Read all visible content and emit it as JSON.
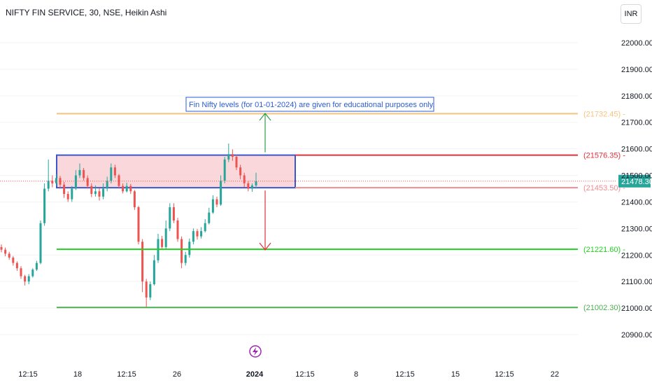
{
  "header": {
    "symbol_title": "NIFTY FIN SERVICE, 30, NSE, Heikin Ashi",
    "currency_label": "INR"
  },
  "chart_data": {
    "type": "candlestick",
    "yaxis": {
      "ticks": [
        22000,
        21900,
        21800,
        21700,
        21600,
        21500,
        21400,
        21300,
        21200,
        21100,
        21000,
        20900
      ],
      "tick_labels": [
        "22000.00",
        "21900.00",
        "21800.00",
        "21700.00",
        "21600.00",
        "21500.00",
        "21400.00",
        "21300.00",
        "21200.00",
        "21100.00",
        "21000.00",
        "20900.00"
      ],
      "range": [
        20860,
        22060
      ]
    },
    "xaxis": {
      "tick_labels": [
        "12:15",
        "18",
        "12:15",
        "26",
        "2024",
        "12:15",
        "8",
        "12:15",
        "15",
        "12:15",
        "22"
      ]
    },
    "last_price": {
      "value": 21478.3,
      "label": "21478.30",
      "color": "#26a69a"
    },
    "levels": [
      {
        "value": 21732.45,
        "label": "(21732.45)",
        "color": "#f7c27e"
      },
      {
        "value": 21576.35,
        "label": "(21576.35)",
        "color": "#e0303c"
      },
      {
        "value": 21453.5,
        "label": "(21453.50)",
        "color": "#f08c92"
      },
      {
        "value": 21221.6,
        "label": "(21221.60)",
        "color": "#22d022"
      },
      {
        "value": 21002.3,
        "label": "(21002.30)",
        "color": "#4caf50"
      }
    ],
    "zone": {
      "from": 21453.5,
      "to": 21576.35,
      "fill": "#f8d0d5",
      "border": "#3a56c8"
    },
    "annotation": {
      "text": "Fin Nifty levels (for 01-01-2024) are given for educational purposes only.",
      "color": "#2a5bd7"
    },
    "arrows": {
      "up_color": "#2e9e48",
      "down_color": "#e0303c"
    },
    "candle_colors": {
      "up": "#26a69a",
      "down": "#ef5350"
    },
    "candles": [
      {
        "o": 21230,
        "c": 21220,
        "h": 21240,
        "l": 21210
      },
      {
        "o": 21220,
        "c": 21205,
        "h": 21228,
        "l": 21195
      },
      {
        "o": 21205,
        "c": 21190,
        "h": 21212,
        "l": 21182
      },
      {
        "o": 21190,
        "c": 21170,
        "h": 21196,
        "l": 21160
      },
      {
        "o": 21170,
        "c": 21150,
        "h": 21176,
        "l": 21140
      },
      {
        "o": 21150,
        "c": 21120,
        "h": 21158,
        "l": 21110
      },
      {
        "o": 21120,
        "c": 21100,
        "h": 21125,
        "l": 21085
      },
      {
        "o": 21100,
        "c": 21120,
        "h": 21128,
        "l": 21090
      },
      {
        "o": 21120,
        "c": 21145,
        "h": 21150,
        "l": 21115
      },
      {
        "o": 21145,
        "c": 21170,
        "h": 21178,
        "l": 21140
      },
      {
        "o": 21170,
        "c": 21320,
        "h": 21330,
        "l": 21165
      },
      {
        "o": 21320,
        "c": 21450,
        "h": 21470,
        "l": 21310
      },
      {
        "o": 21450,
        "c": 21480,
        "h": 21560,
        "l": 21440
      },
      {
        "o": 21480,
        "c": 21470,
        "h": 21500,
        "l": 21455
      },
      {
        "o": 21470,
        "c": 21490,
        "h": 21505,
        "l": 21460
      },
      {
        "o": 21490,
        "c": 21465,
        "h": 21498,
        "l": 21450
      },
      {
        "o": 21465,
        "c": 21430,
        "h": 21475,
        "l": 21415
      },
      {
        "o": 21430,
        "c": 21410,
        "h": 21440,
        "l": 21400
      },
      {
        "o": 21410,
        "c": 21450,
        "h": 21460,
        "l": 21400
      },
      {
        "o": 21450,
        "c": 21500,
        "h": 21520,
        "l": 21445
      },
      {
        "o": 21500,
        "c": 21520,
        "h": 21545,
        "l": 21490
      },
      {
        "o": 21520,
        "c": 21490,
        "h": 21528,
        "l": 21480
      },
      {
        "o": 21490,
        "c": 21460,
        "h": 21500,
        "l": 21450
      },
      {
        "o": 21460,
        "c": 21430,
        "h": 21470,
        "l": 21418
      },
      {
        "o": 21430,
        "c": 21440,
        "h": 21462,
        "l": 21420
      },
      {
        "o": 21440,
        "c": 21420,
        "h": 21452,
        "l": 21405
      },
      {
        "o": 21420,
        "c": 21450,
        "h": 21470,
        "l": 21410
      },
      {
        "o": 21450,
        "c": 21480,
        "h": 21495,
        "l": 21440
      },
      {
        "o": 21480,
        "c": 21530,
        "h": 21545,
        "l": 21470
      },
      {
        "o": 21530,
        "c": 21500,
        "h": 21540,
        "l": 21490
      },
      {
        "o": 21500,
        "c": 21460,
        "h": 21505,
        "l": 21450
      },
      {
        "o": 21460,
        "c": 21440,
        "h": 21470,
        "l": 21432
      },
      {
        "o": 21440,
        "c": 21460,
        "h": 21472,
        "l": 21436
      },
      {
        "o": 21460,
        "c": 21440,
        "h": 21468,
        "l": 21430
      },
      {
        "o": 21440,
        "c": 21380,
        "h": 21445,
        "l": 21370
      },
      {
        "o": 21380,
        "c": 21250,
        "h": 21385,
        "l": 21240
      },
      {
        "o": 21250,
        "c": 21100,
        "h": 21260,
        "l": 21060
      },
      {
        "o": 21100,
        "c": 21040,
        "h": 21110,
        "l": 21000
      },
      {
        "o": 21040,
        "c": 21090,
        "h": 21100,
        "l": 21030
      },
      {
        "o": 21090,
        "c": 21180,
        "h": 21200,
        "l": 21085
      },
      {
        "o": 21180,
        "c": 21260,
        "h": 21280,
        "l": 21170
      },
      {
        "o": 21260,
        "c": 21230,
        "h": 21272,
        "l": 21220
      },
      {
        "o": 21230,
        "c": 21300,
        "h": 21330,
        "l": 21220
      },
      {
        "o": 21300,
        "c": 21380,
        "h": 21395,
        "l": 21290
      },
      {
        "o": 21380,
        "c": 21330,
        "h": 21395,
        "l": 21320
      },
      {
        "o": 21330,
        "c": 21260,
        "h": 21340,
        "l": 21250
      },
      {
        "o": 21260,
        "c": 21170,
        "h": 21270,
        "l": 21150
      },
      {
        "o": 21170,
        "c": 21200,
        "h": 21212,
        "l": 21160
      },
      {
        "o": 21200,
        "c": 21250,
        "h": 21262,
        "l": 21190
      },
      {
        "o": 21250,
        "c": 21290,
        "h": 21300,
        "l": 21240
      },
      {
        "o": 21290,
        "c": 21270,
        "h": 21298,
        "l": 21258
      },
      {
        "o": 21270,
        "c": 21290,
        "h": 21305,
        "l": 21262
      },
      {
        "o": 21290,
        "c": 21320,
        "h": 21335,
        "l": 21285
      },
      {
        "o": 21320,
        "c": 21360,
        "h": 21378,
        "l": 21315
      },
      {
        "o": 21360,
        "c": 21410,
        "h": 21425,
        "l": 21355
      },
      {
        "o": 21410,
        "c": 21390,
        "h": 21420,
        "l": 21380
      },
      {
        "o": 21390,
        "c": 21480,
        "h": 21500,
        "l": 21385
      },
      {
        "o": 21480,
        "c": 21560,
        "h": 21570,
        "l": 21470
      },
      {
        "o": 21560,
        "c": 21580,
        "h": 21620,
        "l": 21550
      },
      {
        "o": 21580,
        "c": 21570,
        "h": 21598,
        "l": 21555
      },
      {
        "o": 21570,
        "c": 21530,
        "h": 21578,
        "l": 21520
      },
      {
        "o": 21530,
        "c": 21500,
        "h": 21540,
        "l": 21485
      },
      {
        "o": 21500,
        "c": 21470,
        "h": 21510,
        "l": 21455
      },
      {
        "o": 21470,
        "c": 21450,
        "h": 21478,
        "l": 21440
      },
      {
        "o": 21450,
        "c": 21462,
        "h": 21470,
        "l": 21438
      },
      {
        "o": 21462,
        "c": 21478,
        "h": 21510,
        "l": 21450
      }
    ]
  }
}
